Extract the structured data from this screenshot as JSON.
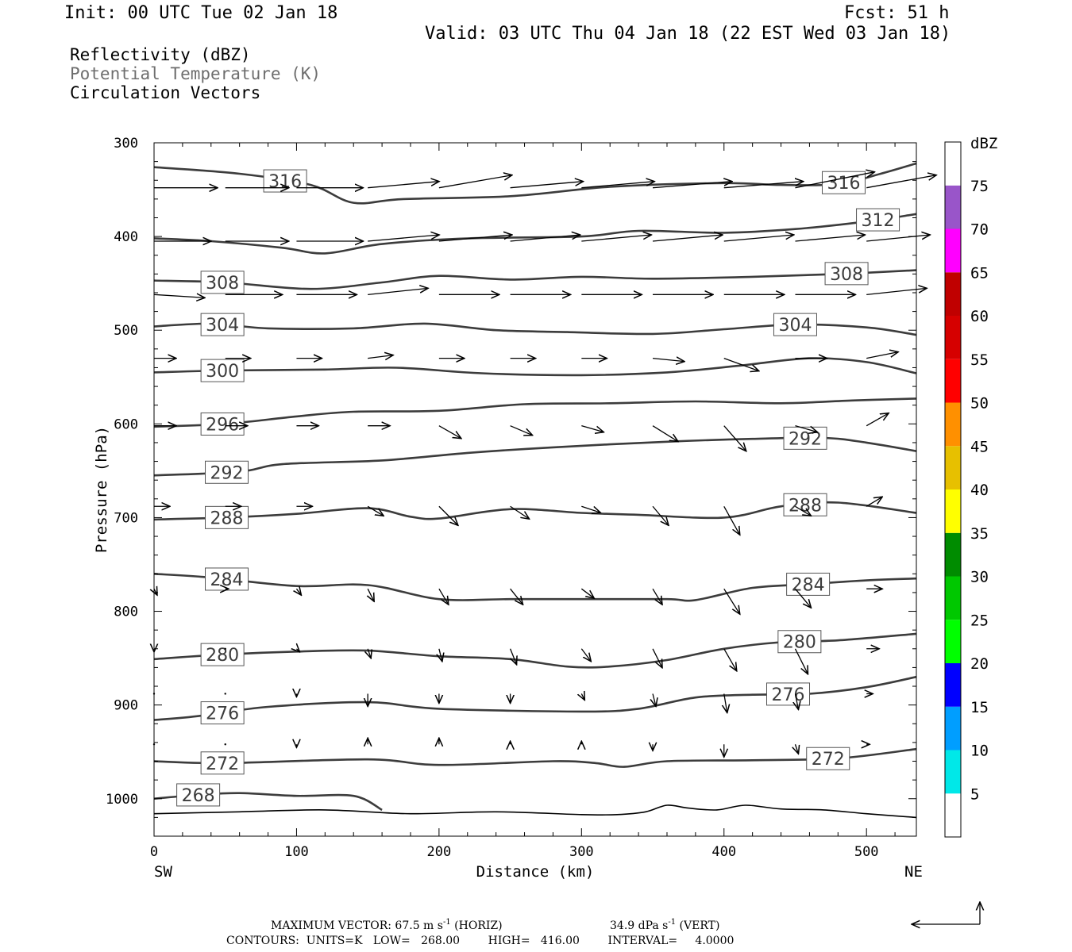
{
  "header": {
    "init": "Init: 00 UTC Tue 02 Jan 18",
    "fcst": "Fcst:   51 h",
    "valid": "Valid: 03 UTC Thu 04 Jan 18 (22 EST Wed 03 Jan 18)"
  },
  "legend": {
    "line1": "Reflectivity (dBZ)",
    "line2": "Potential Temperature (K)",
    "line3": "Circulation Vectors",
    "line2_color": "#6e6e6e"
  },
  "footer": {
    "max_vector_prefix": "MAXIMUM VECTOR:  67.5 m s",
    "horiz_suffix": " (HORIZ)",
    "vert_prefix": "34.9 dPa s",
    "vert_suffix": " (VERT)",
    "exponent": "-1",
    "contours": "CONTOURS:  UNITS=K   LOW=   268.00        HIGH=   416.00        INTERVAL=     4.0000"
  },
  "chart_data": {
    "type": "contour-cross-section",
    "xlabel": "Distance (km)",
    "ylabel": "Pressure (hPa)",
    "xlim": [
      0,
      535
    ],
    "ylim": [
      1040,
      300
    ],
    "x_ticks": [
      0,
      100,
      200,
      300,
      400,
      500
    ],
    "y_ticks": [
      300,
      400,
      500,
      600,
      700,
      800,
      900,
      1000
    ],
    "x_end_labels": {
      "left": "SW",
      "right": "NE"
    },
    "contour_color": "#3c3c3c",
    "isentropes": [
      {
        "label": "316",
        "points": [
          [
            0,
            326
          ],
          [
            60,
            333
          ],
          [
            110,
            345
          ],
          [
            140,
            364
          ],
          [
            175,
            360
          ],
          [
            250,
            357
          ],
          [
            320,
            347
          ],
          [
            400,
            343
          ],
          [
            440,
            345
          ],
          [
            480,
            344
          ],
          [
            510,
            333
          ],
          [
            535,
            322
          ]
        ],
        "label_x": [
          92,
          484
        ]
      },
      {
        "label": "312",
        "points": [
          [
            0,
            402
          ],
          [
            40,
            405
          ],
          [
            90,
            412
          ],
          [
            120,
            418
          ],
          [
            160,
            408
          ],
          [
            220,
            402
          ],
          [
            300,
            400
          ],
          [
            340,
            394
          ],
          [
            400,
            396
          ],
          [
            450,
            392
          ],
          [
            500,
            384
          ],
          [
            535,
            376
          ]
        ],
        "label_x": [
          508
        ]
      },
      {
        "label": "308",
        "points": [
          [
            0,
            447
          ],
          [
            50,
            449
          ],
          [
            110,
            456
          ],
          [
            160,
            449
          ],
          [
            200,
            442
          ],
          [
            250,
            446
          ],
          [
            300,
            443
          ],
          [
            350,
            445
          ],
          [
            420,
            443
          ],
          [
            480,
            440
          ],
          [
            535,
            436
          ]
        ],
        "label_x": [
          48,
          486
        ]
      },
      {
        "label": "304",
        "points": [
          [
            0,
            496
          ],
          [
            40,
            493
          ],
          [
            80,
            498
          ],
          [
            140,
            498
          ],
          [
            190,
            493
          ],
          [
            240,
            500
          ],
          [
            290,
            502
          ],
          [
            350,
            504
          ],
          [
            400,
            499
          ],
          [
            450,
            494
          ],
          [
            500,
            497
          ],
          [
            535,
            505
          ]
        ],
        "label_x": [
          48,
          450
        ]
      },
      {
        "label": "300",
        "points": [
          [
            0,
            545
          ],
          [
            50,
            543
          ],
          [
            120,
            542
          ],
          [
            170,
            540
          ],
          [
            230,
            546
          ],
          [
            300,
            548
          ],
          [
            360,
            545
          ],
          [
            410,
            538
          ],
          [
            460,
            530
          ],
          [
            500,
            534
          ],
          [
            535,
            546
          ]
        ],
        "label_x": [
          48
        ]
      },
      {
        "label": "296",
        "points": [
          [
            0,
            603
          ],
          [
            50,
            600
          ],
          [
            100,
            592
          ],
          [
            140,
            587
          ],
          [
            200,
            586
          ],
          [
            260,
            579
          ],
          [
            320,
            578
          ],
          [
            380,
            576
          ],
          [
            440,
            578
          ],
          [
            490,
            575
          ],
          [
            535,
            573
          ]
        ],
        "label_x": [
          48
        ]
      },
      {
        "label": "292",
        "points": [
          [
            0,
            655
          ],
          [
            60,
            651
          ],
          [
            90,
            643
          ],
          [
            160,
            639
          ],
          [
            220,
            631
          ],
          [
            280,
            625
          ],
          [
            360,
            619
          ],
          [
            420,
            616
          ],
          [
            470,
            615
          ],
          [
            500,
            620
          ],
          [
            535,
            629
          ]
        ],
        "label_x": [
          51,
          457
        ]
      },
      {
        "label": "288",
        "points": [
          [
            0,
            702
          ],
          [
            50,
            700
          ],
          [
            100,
            696
          ],
          [
            150,
            690
          ],
          [
            180,
            699
          ],
          [
            200,
            701
          ],
          [
            250,
            691
          ],
          [
            300,
            695
          ],
          [
            340,
            697
          ],
          [
            400,
            700
          ],
          [
            440,
            688
          ],
          [
            480,
            684
          ],
          [
            535,
            695
          ]
        ],
        "label_x": [
          51,
          457
        ]
      },
      {
        "label": "284",
        "points": [
          [
            0,
            760
          ],
          [
            40,
            764
          ],
          [
            100,
            773
          ],
          [
            150,
            772
          ],
          [
            200,
            787
          ],
          [
            250,
            787
          ],
          [
            300,
            787
          ],
          [
            360,
            787
          ],
          [
            380,
            788
          ],
          [
            420,
            775
          ],
          [
            460,
            771
          ],
          [
            500,
            767
          ],
          [
            535,
            765
          ]
        ],
        "label_x": [
          51,
          459
        ]
      },
      {
        "label": "280",
        "points": [
          [
            0,
            851
          ],
          [
            50,
            846
          ],
          [
            100,
            843
          ],
          [
            150,
            842
          ],
          [
            200,
            848
          ],
          [
            250,
            851
          ],
          [
            290,
            859
          ],
          [
            320,
            859
          ],
          [
            360,
            852
          ],
          [
            400,
            840
          ],
          [
            440,
            833
          ],
          [
            480,
            831
          ],
          [
            535,
            824
          ]
        ],
        "label_x": [
          48,
          453
        ]
      },
      {
        "label": "276",
        "points": [
          [
            0,
            916
          ],
          [
            30,
            912
          ],
          [
            80,
            902
          ],
          [
            150,
            897
          ],
          [
            200,
            904
          ],
          [
            300,
            907
          ],
          [
            340,
            904
          ],
          [
            380,
            892
          ],
          [
            420,
            889
          ],
          [
            460,
            888
          ],
          [
            500,
            881
          ],
          [
            535,
            870
          ]
        ],
        "label_x": [
          48,
          445
        ]
      },
      {
        "label": "272",
        "points": [
          [
            0,
            960
          ],
          [
            50,
            962
          ],
          [
            150,
            958
          ],
          [
            200,
            964
          ],
          [
            280,
            960
          ],
          [
            310,
            962
          ],
          [
            330,
            966
          ],
          [
            360,
            960
          ],
          [
            420,
            959
          ],
          [
            480,
            957
          ],
          [
            535,
            947
          ]
        ],
        "label_x": [
          48,
          473
        ]
      },
      {
        "label": "268",
        "points": [
          [
            0,
            1000
          ],
          [
            30,
            996
          ],
          [
            60,
            994
          ],
          [
            100,
            997
          ],
          [
            140,
            997
          ],
          [
            160,
            1012
          ]
        ],
        "label_x": [
          31
        ]
      }
    ],
    "terrain": [
      [
        0,
        1016
      ],
      [
        60,
        1014
      ],
      [
        120,
        1012
      ],
      [
        180,
        1016
      ],
      [
        240,
        1014
      ],
      [
        300,
        1017
      ],
      [
        325,
        1017
      ],
      [
        345,
        1014
      ],
      [
        360,
        1007
      ],
      [
        375,
        1010
      ],
      [
        395,
        1012
      ],
      [
        415,
        1007
      ],
      [
        440,
        1011
      ],
      [
        470,
        1012
      ],
      [
        500,
        1016
      ],
      [
        535,
        1020
      ]
    ],
    "vectors": [
      {
        "level": 348,
        "x": [
          0,
          50,
          100,
          150,
          200,
          250,
          300,
          350,
          400,
          450,
          500
        ],
        "u": [
          40,
          40,
          42,
          45,
          46,
          46,
          46,
          50,
          50,
          50,
          44
        ],
        "w": [
          0,
          0,
          0,
          -4,
          -8,
          -4,
          -4,
          -4,
          -4,
          -10,
          -8
        ]
      },
      {
        "level": 405,
        "x": [
          0,
          50,
          100,
          150,
          200,
          250,
          300,
          350,
          400,
          450,
          500
        ],
        "u": [
          36,
          40,
          42,
          45,
          46,
          44,
          44,
          44,
          44,
          44,
          40
        ],
        "w": [
          0,
          0,
          0,
          -4,
          -4,
          -4,
          -4,
          -4,
          -4,
          -4,
          -4
        ]
      },
      {
        "level": 462,
        "x": [
          0,
          50,
          100,
          150,
          200,
          250,
          300,
          350,
          400,
          450,
          500
        ],
        "u": [
          32,
          36,
          38,
          38,
          38,
          38,
          38,
          38,
          38,
          38,
          38
        ],
        "w": [
          2,
          0,
          0,
          -4,
          0,
          0,
          0,
          0,
          0,
          0,
          -4
        ]
      },
      {
        "level": 530,
        "x": [
          0,
          50,
          100,
          150,
          200,
          250,
          300,
          350,
          400,
          450,
          500
        ],
        "u": [
          14,
          16,
          16,
          16,
          16,
          16,
          16,
          20,
          22,
          20,
          20
        ],
        "w": [
          0,
          0,
          0,
          -2,
          0,
          0,
          0,
          2,
          8,
          0,
          -4
        ]
      },
      {
        "level": 602,
        "x": [
          0,
          50,
          100,
          150,
          200,
          250,
          300,
          350,
          400,
          450,
          500
        ],
        "u": [
          14,
          14,
          14,
          14,
          14,
          14,
          14,
          16,
          14,
          14,
          14
        ],
        "w": [
          0,
          0,
          0,
          0,
          8,
          6,
          4,
          10,
          16,
          4,
          -8
        ]
      },
      {
        "level": 688,
        "x": [
          0,
          50,
          100,
          150,
          200,
          250,
          300,
          350,
          400,
          450,
          500
        ],
        "u": [
          10,
          10,
          10,
          10,
          12,
          12,
          12,
          10,
          10,
          10,
          10
        ],
        "w": [
          0,
          0,
          0,
          6,
          12,
          8,
          4,
          12,
          18,
          6,
          -6
        ]
      },
      {
        "level": 776,
        "x": [
          0,
          50,
          100,
          150,
          200,
          250,
          300,
          350,
          400,
          450,
          500
        ],
        "u": [
          2,
          2,
          3,
          4,
          6,
          8,
          8,
          6,
          10,
          10,
          10
        ],
        "w": [
          4,
          0,
          4,
          8,
          10,
          10,
          6,
          10,
          16,
          12,
          0
        ]
      },
      {
        "level": 840,
        "x": [
          0,
          50,
          100,
          150,
          200,
          250,
          300,
          350,
          400,
          450,
          500
        ],
        "u": [
          0,
          0,
          2,
          2,
          2,
          4,
          6,
          6,
          8,
          8,
          8
        ],
        "w": [
          2,
          0,
          2,
          6,
          8,
          10,
          8,
          12,
          14,
          16,
          0
        ]
      },
      {
        "level": 888,
        "x": [
          0,
          50,
          100,
          150,
          200,
          250,
          300,
          350,
          400,
          450,
          500
        ],
        "u": [
          0,
          0,
          0,
          0,
          0,
          0,
          2,
          2,
          2,
          2,
          4
        ],
        "w": [
          0,
          0,
          2,
          8,
          6,
          6,
          4,
          8,
          12,
          10,
          0
        ]
      },
      {
        "level": 942,
        "x": [
          0,
          50,
          100,
          150,
          200,
          250,
          300,
          350,
          400,
          450,
          500
        ],
        "u": [
          0,
          0,
          0,
          0,
          0,
          0,
          0,
          0,
          0,
          2,
          2
        ],
        "w": [
          0,
          0,
          2,
          -4,
          -4,
          -2,
          -2,
          4,
          8,
          6,
          0
        ]
      }
    ],
    "colorbar": {
      "unit": "dBZ",
      "bins": [
        {
          "from": 0,
          "to": 5,
          "color": "#ffffff"
        },
        {
          "from": 5,
          "to": 10,
          "color": "#00e8e8"
        },
        {
          "from": 10,
          "to": 15,
          "color": "#009eff"
        },
        {
          "from": 15,
          "to": 20,
          "color": "#0000ff"
        },
        {
          "from": 20,
          "to": 25,
          "color": "#00ff00"
        },
        {
          "from": 25,
          "to": 30,
          "color": "#00c800"
        },
        {
          "from": 30,
          "to": 35,
          "color": "#008c00"
        },
        {
          "from": 35,
          "to": 40,
          "color": "#ffff00"
        },
        {
          "from": 40,
          "to": 45,
          "color": "#e7c000"
        },
        {
          "from": 45,
          "to": 50,
          "color": "#ff9000"
        },
        {
          "from": 50,
          "to": 55,
          "color": "#ff0000"
        },
        {
          "from": 55,
          "to": 60,
          "color": "#d60000"
        },
        {
          "from": 60,
          "to": 65,
          "color": "#c00000"
        },
        {
          "from": 65,
          "to": 70,
          "color": "#ff00ff"
        },
        {
          "from": 70,
          "to": 75,
          "color": "#9955c9"
        },
        {
          "from": 75,
          "to": 80,
          "color": "#ffffff"
        }
      ],
      "tick_labels": [
        "5",
        "10",
        "15",
        "20",
        "25",
        "30",
        "35",
        "40",
        "45",
        "50",
        "55",
        "60",
        "65",
        "70",
        "75"
      ]
    }
  }
}
